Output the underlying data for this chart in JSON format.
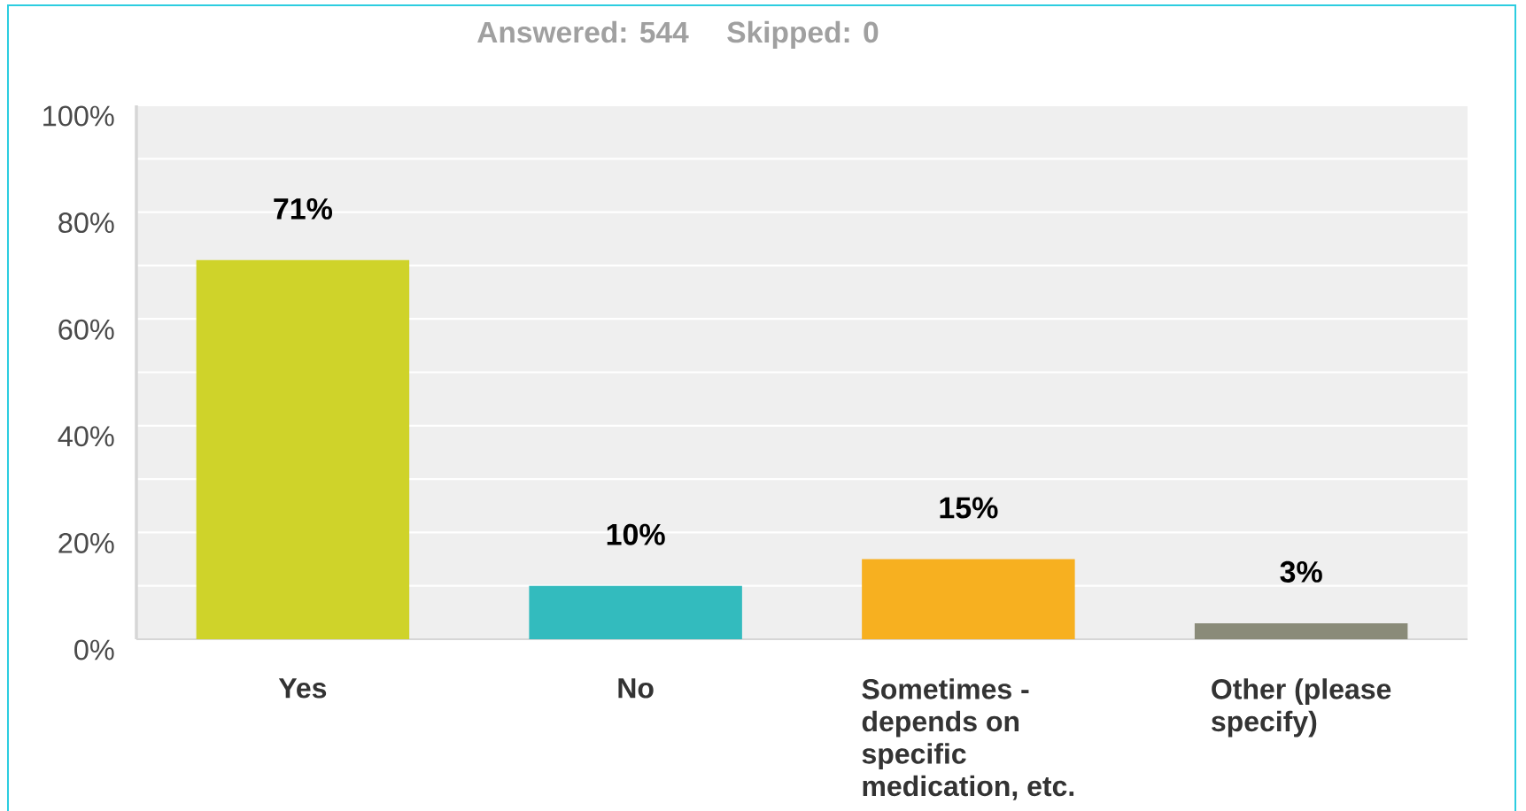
{
  "chart_data": {
    "type": "bar",
    "subtitle": "Answered: 544",
    "annotations": [
      "Skipped: 0"
    ],
    "categories": [
      "Yes",
      "No",
      "Sometimes - depends on specific medication, etc.",
      "Other (please specify)"
    ],
    "values": [
      71,
      10,
      15,
      3
    ],
    "colors": [
      "#cfd32a",
      "#33bbbe",
      "#f7b020",
      "#8a8b79"
    ],
    "value_labels": [
      "71%",
      "10%",
      "15%",
      "3%"
    ],
    "ylim": [
      0,
      100
    ],
    "yticks": [
      {
        "value": 0,
        "label": "0%"
      },
      {
        "value": 10,
        "label": null
      },
      {
        "value": 20,
        "label": "20%"
      },
      {
        "value": 30,
        "label": null
      },
      {
        "value": 40,
        "label": "40%"
      },
      {
        "value": 50,
        "label": null
      },
      {
        "value": 60,
        "label": "60%"
      },
      {
        "value": 70,
        "label": null
      },
      {
        "value": 80,
        "label": "80%"
      },
      {
        "value": 90,
        "label": null
      },
      {
        "value": 100,
        "label": "100%"
      }
    ],
    "grid": "y"
  }
}
